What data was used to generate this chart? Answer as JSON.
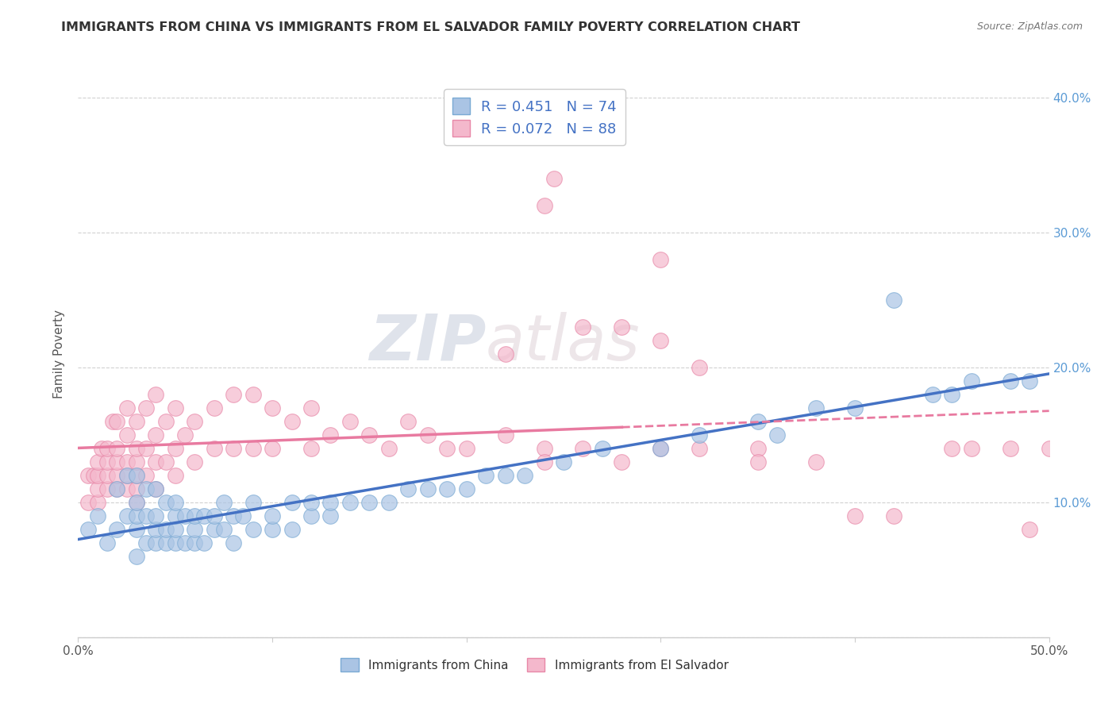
{
  "title": "IMMIGRANTS FROM CHINA VS IMMIGRANTS FROM EL SALVADOR FAMILY POVERTY CORRELATION CHART",
  "source": "Source: ZipAtlas.com",
  "ylabel": "Family Poverty",
  "xlim": [
    0.0,
    0.5
  ],
  "ylim": [
    0.0,
    0.42
  ],
  "x_ticks": [
    0.0,
    0.1,
    0.2,
    0.3,
    0.4,
    0.5
  ],
  "x_tick_labels": [
    "0.0%",
    "",
    "",
    "",
    "",
    "50.0%"
  ],
  "y_ticks": [
    0.0,
    0.1,
    0.2,
    0.3,
    0.4
  ],
  "y_tick_labels_left": [
    "",
    "",
    "",
    "",
    ""
  ],
  "y_tick_labels_right": [
    "",
    "10.0%",
    "20.0%",
    "30.0%",
    "40.0%"
  ],
  "china_color": "#aac4e4",
  "china_edge_color": "#7aaad4",
  "elsalvador_color": "#f4b8cc",
  "elsalvador_edge_color": "#e888a8",
  "china_line_color": "#4472c4",
  "elsalvador_line_color": "#e87aa0",
  "R_china": 0.451,
  "N_china": 74,
  "R_elsalvador": 0.072,
  "N_elsalvador": 88,
  "watermark_zip": "ZIP",
  "watermark_atlas": "atlas",
  "legend_label_china": "Immigrants from China",
  "legend_label_elsalvador": "Immigrants from El Salvador",
  "china_scatter_x": [
    0.005,
    0.01,
    0.015,
    0.02,
    0.02,
    0.025,
    0.025,
    0.03,
    0.03,
    0.03,
    0.03,
    0.03,
    0.035,
    0.035,
    0.035,
    0.04,
    0.04,
    0.04,
    0.04,
    0.045,
    0.045,
    0.045,
    0.05,
    0.05,
    0.05,
    0.05,
    0.055,
    0.055,
    0.06,
    0.06,
    0.06,
    0.065,
    0.065,
    0.07,
    0.07,
    0.075,
    0.075,
    0.08,
    0.08,
    0.085,
    0.09,
    0.09,
    0.1,
    0.1,
    0.11,
    0.11,
    0.12,
    0.12,
    0.13,
    0.13,
    0.14,
    0.15,
    0.16,
    0.17,
    0.18,
    0.19,
    0.2,
    0.21,
    0.22,
    0.23,
    0.25,
    0.27,
    0.3,
    0.32,
    0.35,
    0.36,
    0.38,
    0.4,
    0.42,
    0.44,
    0.45,
    0.46,
    0.48,
    0.49
  ],
  "china_scatter_y": [
    0.08,
    0.09,
    0.07,
    0.08,
    0.11,
    0.09,
    0.12,
    0.06,
    0.08,
    0.09,
    0.1,
    0.12,
    0.07,
    0.09,
    0.11,
    0.07,
    0.08,
    0.09,
    0.11,
    0.07,
    0.08,
    0.1,
    0.07,
    0.08,
    0.09,
    0.1,
    0.07,
    0.09,
    0.07,
    0.08,
    0.09,
    0.07,
    0.09,
    0.08,
    0.09,
    0.08,
    0.1,
    0.07,
    0.09,
    0.09,
    0.08,
    0.1,
    0.08,
    0.09,
    0.08,
    0.1,
    0.09,
    0.1,
    0.09,
    0.1,
    0.1,
    0.1,
    0.1,
    0.11,
    0.11,
    0.11,
    0.11,
    0.12,
    0.12,
    0.12,
    0.13,
    0.14,
    0.14,
    0.15,
    0.16,
    0.15,
    0.17,
    0.17,
    0.25,
    0.18,
    0.18,
    0.19,
    0.19,
    0.19
  ],
  "elsalvador_scatter_x": [
    0.005,
    0.005,
    0.008,
    0.01,
    0.01,
    0.01,
    0.01,
    0.012,
    0.015,
    0.015,
    0.015,
    0.015,
    0.018,
    0.02,
    0.02,
    0.02,
    0.02,
    0.02,
    0.025,
    0.025,
    0.025,
    0.025,
    0.025,
    0.03,
    0.03,
    0.03,
    0.03,
    0.03,
    0.03,
    0.035,
    0.035,
    0.035,
    0.04,
    0.04,
    0.04,
    0.04,
    0.045,
    0.045,
    0.05,
    0.05,
    0.05,
    0.055,
    0.06,
    0.06,
    0.07,
    0.07,
    0.08,
    0.08,
    0.09,
    0.09,
    0.1,
    0.1,
    0.11,
    0.12,
    0.12,
    0.13,
    0.14,
    0.15,
    0.16,
    0.17,
    0.18,
    0.19,
    0.2,
    0.22,
    0.24,
    0.24,
    0.26,
    0.28,
    0.3,
    0.32,
    0.35,
    0.35,
    0.38,
    0.4,
    0.42,
    0.45,
    0.46,
    0.48,
    0.49,
    0.5,
    0.24,
    0.245,
    0.26,
    0.22,
    0.28,
    0.3,
    0.3,
    0.32
  ],
  "elsalvador_scatter_y": [
    0.1,
    0.12,
    0.12,
    0.1,
    0.11,
    0.12,
    0.13,
    0.14,
    0.11,
    0.12,
    0.13,
    0.14,
    0.16,
    0.11,
    0.12,
    0.13,
    0.14,
    0.16,
    0.11,
    0.12,
    0.13,
    0.15,
    0.17,
    0.1,
    0.11,
    0.12,
    0.13,
    0.14,
    0.16,
    0.12,
    0.14,
    0.17,
    0.11,
    0.13,
    0.15,
    0.18,
    0.13,
    0.16,
    0.12,
    0.14,
    0.17,
    0.15,
    0.13,
    0.16,
    0.14,
    0.17,
    0.14,
    0.18,
    0.14,
    0.18,
    0.14,
    0.17,
    0.16,
    0.14,
    0.17,
    0.15,
    0.16,
    0.15,
    0.14,
    0.16,
    0.15,
    0.14,
    0.14,
    0.15,
    0.14,
    0.13,
    0.14,
    0.13,
    0.14,
    0.14,
    0.14,
    0.13,
    0.13,
    0.09,
    0.09,
    0.14,
    0.14,
    0.14,
    0.08,
    0.14,
    0.32,
    0.34,
    0.23,
    0.21,
    0.23,
    0.28,
    0.22,
    0.2
  ]
}
